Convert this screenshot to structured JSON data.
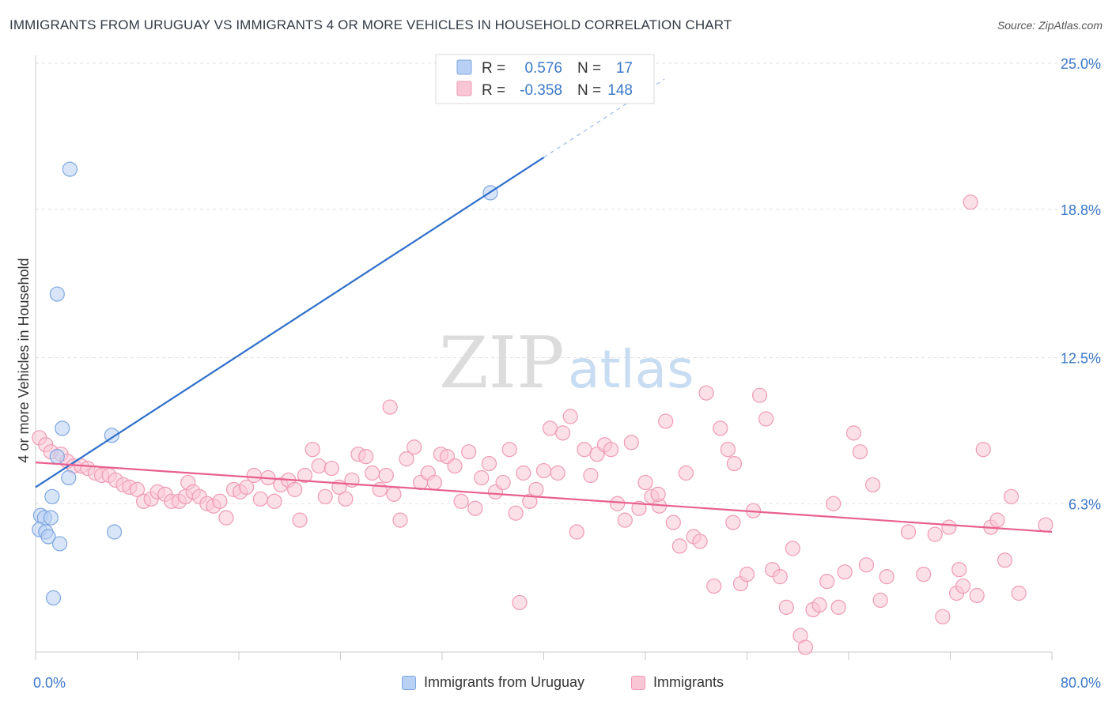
{
  "header": {
    "title": "IMMIGRANTS FROM URUGUAY VS IMMIGRANTS 4 OR MORE VEHICLES IN HOUSEHOLD CORRELATION CHART",
    "source": "Source: ZipAtlas.com"
  },
  "watermark": {
    "zip": "ZIP",
    "atlas": "atlas"
  },
  "chart_data": {
    "type": "scatter",
    "title": "IMMIGRANTS FROM URUGUAY VS IMMIGRANTS 4 OR MORE VEHICLES IN HOUSEHOLD CORRELATION CHART",
    "ylabel": "4 or more Vehicles in Household",
    "xlim": [
      0,
      80
    ],
    "ylim": [
      0,
      25
    ],
    "x_tick_labels": {
      "min": "0.0%",
      "max": "80.0%"
    },
    "y_ticks": [
      {
        "value": 6.3,
        "label": "6.3%"
      },
      {
        "value": 12.5,
        "label": "12.5%"
      },
      {
        "value": 18.8,
        "label": "18.8%"
      },
      {
        "value": 25.0,
        "label": "25.0%"
      }
    ],
    "grid": true,
    "legend_position": "top-center",
    "stats": [
      {
        "r_label": "R =",
        "r_value": "0.576",
        "n_label": "N =",
        "n_value": "17"
      },
      {
        "r_label": "R =",
        "r_value": "-0.358",
        "n_label": "N =",
        "n_value": "148"
      }
    ],
    "series": [
      {
        "name": "Immigrants from Uruguay",
        "fill": "#b8d0f4",
        "stroke": "#7ea7e0",
        "line_color": "#2f6fc9",
        "trend": {
          "x0": 0,
          "y0": 7.0,
          "x1": 40,
          "y1": 21.0,
          "x_dash_end": 49.5
        },
        "points": [
          [
            2.7,
            20.5
          ],
          [
            35.8,
            19.5
          ],
          [
            1.7,
            15.2
          ],
          [
            2.1,
            9.5
          ],
          [
            6.0,
            9.2
          ],
          [
            1.7,
            8.3
          ],
          [
            2.6,
            7.4
          ],
          [
            1.3,
            6.6
          ],
          [
            0.4,
            5.8
          ],
          [
            0.7,
            5.7
          ],
          [
            1.2,
            5.7
          ],
          [
            0.3,
            5.2
          ],
          [
            0.8,
            5.1
          ],
          [
            1.0,
            4.9
          ],
          [
            6.2,
            5.1
          ],
          [
            1.9,
            4.6
          ],
          [
            1.4,
            2.3
          ]
        ]
      },
      {
        "name": "Immigrants",
        "fill": "#f9c6d5",
        "stroke": "#ef9ab4",
        "line_color": "#e8608f",
        "trend": {
          "x0": 0,
          "y0": 8.05,
          "x1": 80,
          "y1": 5.1
        },
        "points": [
          [
            0.3,
            9.1
          ],
          [
            0.8,
            8.8
          ],
          [
            1.2,
            8.5
          ],
          [
            2.0,
            8.4
          ],
          [
            2.5,
            8.1
          ],
          [
            3.0,
            7.9
          ],
          [
            3.6,
            7.9
          ],
          [
            4.1,
            7.8
          ],
          [
            4.7,
            7.6
          ],
          [
            5.2,
            7.5
          ],
          [
            5.8,
            7.5
          ],
          [
            6.3,
            7.3
          ],
          [
            6.9,
            7.1
          ],
          [
            7.4,
            7.0
          ],
          [
            8.0,
            6.9
          ],
          [
            8.5,
            6.4
          ],
          [
            9.1,
            6.5
          ],
          [
            9.6,
            6.8
          ],
          [
            10.2,
            6.7
          ],
          [
            10.7,
            6.4
          ],
          [
            11.3,
            6.4
          ],
          [
            11.8,
            6.6
          ],
          [
            12.0,
            7.2
          ],
          [
            12.4,
            6.8
          ],
          [
            12.9,
            6.6
          ],
          [
            13.5,
            6.3
          ],
          [
            14.0,
            6.2
          ],
          [
            14.5,
            6.4
          ],
          [
            15.0,
            5.7
          ],
          [
            15.6,
            6.9
          ],
          [
            16.1,
            6.8
          ],
          [
            16.6,
            7.0
          ],
          [
            17.2,
            7.5
          ],
          [
            17.7,
            6.5
          ],
          [
            18.3,
            7.4
          ],
          [
            18.8,
            6.4
          ],
          [
            19.3,
            7.1
          ],
          [
            19.9,
            7.3
          ],
          [
            20.4,
            6.9
          ],
          [
            20.8,
            5.6
          ],
          [
            21.2,
            7.5
          ],
          [
            21.8,
            8.6
          ],
          [
            22.3,
            7.9
          ],
          [
            22.8,
            6.6
          ],
          [
            23.3,
            7.8
          ],
          [
            23.9,
            7.0
          ],
          [
            24.4,
            6.5
          ],
          [
            24.9,
            7.3
          ],
          [
            25.4,
            8.4
          ],
          [
            26.0,
            8.3
          ],
          [
            26.5,
            7.6
          ],
          [
            27.1,
            6.9
          ],
          [
            27.6,
            7.5
          ],
          [
            27.9,
            10.4
          ],
          [
            28.2,
            6.7
          ],
          [
            28.7,
            5.6
          ],
          [
            29.2,
            8.2
          ],
          [
            29.8,
            8.7
          ],
          [
            30.3,
            7.2
          ],
          [
            30.9,
            7.6
          ],
          [
            31.4,
            7.2
          ],
          [
            31.9,
            8.4
          ],
          [
            32.4,
            8.3
          ],
          [
            33.0,
            7.9
          ],
          [
            33.5,
            6.4
          ],
          [
            34.1,
            8.5
          ],
          [
            34.6,
            6.1
          ],
          [
            35.1,
            7.4
          ],
          [
            35.7,
            8.0
          ],
          [
            36.2,
            6.8
          ],
          [
            36.8,
            7.2
          ],
          [
            37.3,
            8.6
          ],
          [
            37.8,
            5.9
          ],
          [
            38.4,
            7.6
          ],
          [
            38.9,
            6.4
          ],
          [
            39.4,
            6.9
          ],
          [
            40.0,
            7.7
          ],
          [
            40.5,
            9.5
          ],
          [
            41.1,
            7.6
          ],
          [
            41.5,
            9.3
          ],
          [
            42.1,
            10.0
          ],
          [
            42.6,
            5.1
          ],
          [
            43.2,
            8.6
          ],
          [
            43.7,
            7.5
          ],
          [
            44.2,
            8.4
          ],
          [
            44.8,
            8.8
          ],
          [
            45.3,
            8.6
          ],
          [
            45.8,
            6.3
          ],
          [
            46.4,
            5.6
          ],
          [
            46.9,
            8.9
          ],
          [
            47.5,
            6.1
          ],
          [
            48.0,
            7.2
          ],
          [
            48.5,
            6.6
          ],
          [
            49.1,
            6.2
          ],
          [
            49.6,
            9.8
          ],
          [
            50.2,
            5.5
          ],
          [
            50.7,
            4.5
          ],
          [
            51.2,
            7.6
          ],
          [
            51.8,
            4.9
          ],
          [
            52.3,
            4.7
          ],
          [
            52.8,
            11.0
          ],
          [
            53.4,
            2.8
          ],
          [
            53.9,
            9.5
          ],
          [
            54.5,
            8.6
          ],
          [
            54.9,
            5.5
          ],
          [
            55.5,
            2.9
          ],
          [
            56.0,
            3.3
          ],
          [
            56.5,
            6.0
          ],
          [
            57.0,
            10.9
          ],
          [
            57.5,
            9.9
          ],
          [
            58.0,
            3.5
          ],
          [
            58.6,
            3.2
          ],
          [
            59.1,
            1.9
          ],
          [
            59.6,
            4.4
          ],
          [
            60.2,
            0.7
          ],
          [
            60.6,
            0.2
          ],
          [
            61.2,
            1.8
          ],
          [
            61.7,
            2.0
          ],
          [
            62.3,
            3.0
          ],
          [
            62.8,
            6.3
          ],
          [
            63.2,
            1.9
          ],
          [
            63.7,
            3.4
          ],
          [
            64.4,
            9.3
          ],
          [
            64.9,
            8.5
          ],
          [
            65.4,
            3.7
          ],
          [
            65.9,
            7.1
          ],
          [
            66.5,
            2.2
          ],
          [
            67.0,
            3.2
          ],
          [
            68.7,
            5.1
          ],
          [
            69.9,
            3.3
          ],
          [
            70.8,
            5.0
          ],
          [
            71.4,
            1.5
          ],
          [
            71.9,
            5.3
          ],
          [
            72.5,
            2.5
          ],
          [
            73.0,
            2.8
          ],
          [
            73.6,
            19.1
          ],
          [
            74.1,
            2.4
          ],
          [
            74.6,
            8.6
          ],
          [
            75.2,
            5.3
          ],
          [
            75.7,
            5.6
          ],
          [
            76.3,
            3.9
          ],
          [
            76.8,
            6.6
          ],
          [
            77.4,
            2.5
          ],
          [
            79.5,
            5.4
          ],
          [
            72.7,
            3.5
          ],
          [
            38.1,
            2.1
          ],
          [
            49.0,
            6.7
          ],
          [
            55.0,
            8.0
          ]
        ]
      }
    ]
  },
  "legend": {
    "items": [
      {
        "label": "Immigrants from Uruguay"
      },
      {
        "label": "Immigrants"
      }
    ]
  }
}
